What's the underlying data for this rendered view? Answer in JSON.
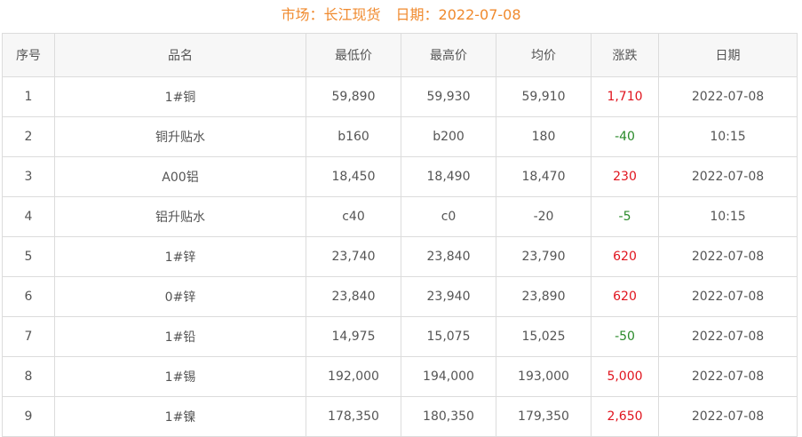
{
  "header": {
    "market": "市场：长江现货",
    "date": "日期：2022-07-08"
  },
  "columns": [
    "序号",
    "品名",
    "最低价",
    "最高价",
    "均价",
    "涨跌",
    "日期"
  ],
  "colors": {
    "up": "#e0141e",
    "down": "#2a8a2a",
    "title": "#f08a2e"
  },
  "rows": [
    [
      "1",
      "1#铜",
      "59,890",
      "59,930",
      "59,910",
      "1,710",
      "2022-07-08"
    ],
    [
      "2",
      "铜升贴水",
      "b160",
      "b200",
      "180",
      "-40",
      "10:15"
    ],
    [
      "3",
      "A00铝",
      "18,450",
      "18,490",
      "18,470",
      "230",
      "2022-07-08"
    ],
    [
      "4",
      "铝升贴水",
      "c40",
      "c0",
      "-20",
      "-5",
      "10:15"
    ],
    [
      "5",
      "1#锌",
      "23,740",
      "23,840",
      "23,790",
      "620",
      "2022-07-08"
    ],
    [
      "6",
      "0#锌",
      "23,840",
      "23,940",
      "23,890",
      "620",
      "2022-07-08"
    ],
    [
      "7",
      "1#铅",
      "14,975",
      "15,075",
      "15,025",
      "-50",
      "2022-07-08"
    ],
    [
      "8",
      "1#锡",
      "192,000",
      "194,000",
      "193,000",
      "5,000",
      "2022-07-08"
    ],
    [
      "9",
      "1#镍",
      "178,350",
      "180,350",
      "179,350",
      "2,650",
      "2022-07-08"
    ]
  ]
}
